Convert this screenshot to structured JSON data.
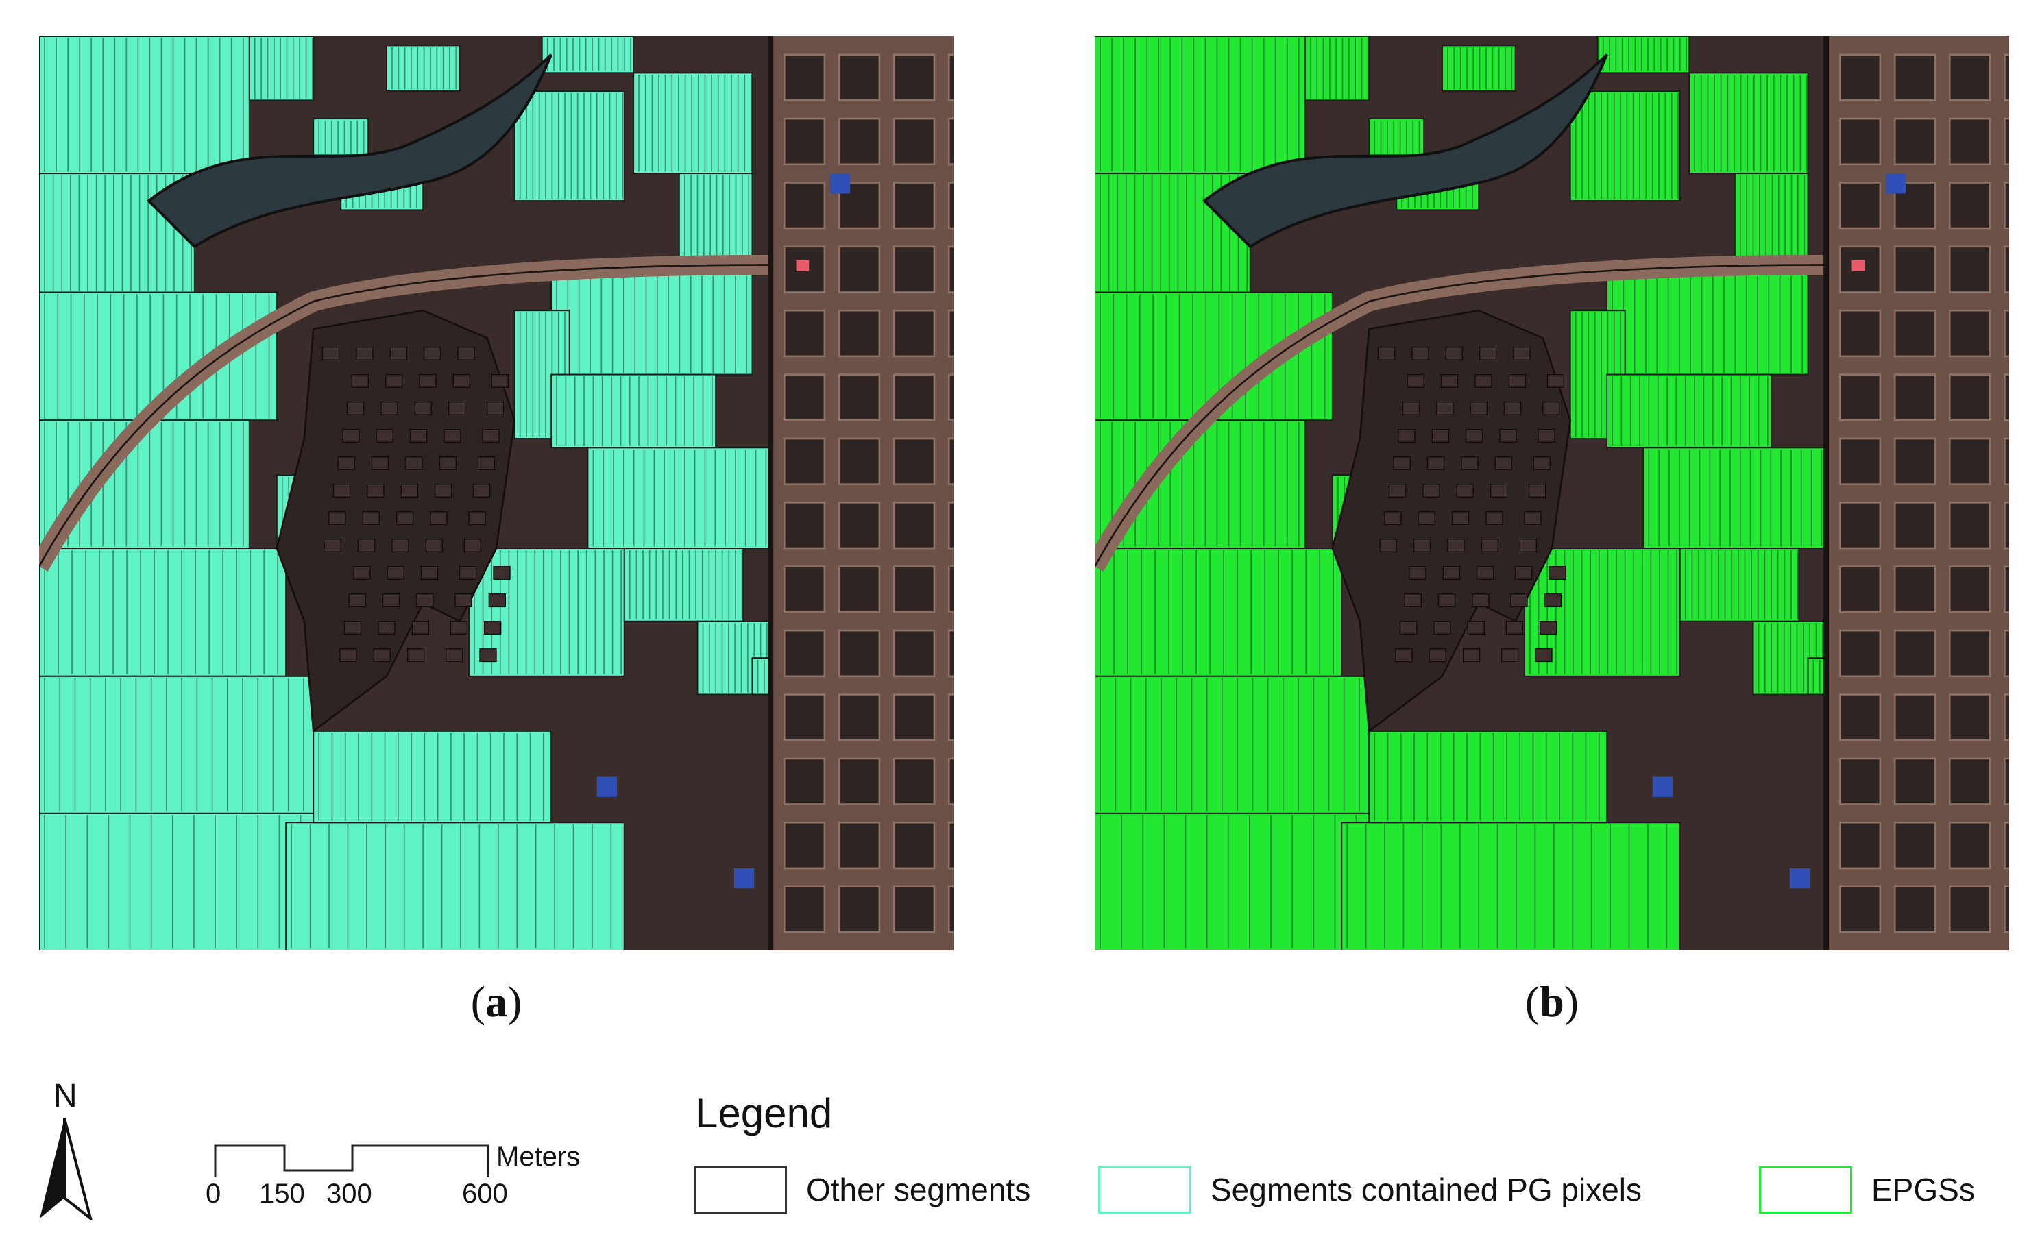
{
  "panels": [
    {
      "caption_open": "(",
      "caption_letter": "a",
      "caption_close": ")",
      "highlight_color": "#5ff2c4",
      "highlight_label": "Segments contained PG pixels"
    },
    {
      "caption_open": "(",
      "caption_letter": "b",
      "caption_close": ")",
      "highlight_color": "#22e832",
      "highlight_label": "EPGSs"
    }
  ],
  "north_arrow": {
    "label": "N"
  },
  "scale_bar": {
    "ticks": [
      "0",
      "150",
      "300",
      "600"
    ],
    "unit": "Meters"
  },
  "legend": {
    "title": "Legend",
    "items": [
      {
        "label": "Other segments",
        "color": "#333333"
      },
      {
        "label": "Segments contained PG pixels",
        "color": "#5ff2c4"
      },
      {
        "label": "EPGSs",
        "color": "#22e832"
      }
    ]
  },
  "colors": {
    "background_dark": "#3a2c2a",
    "village": "#2f2424",
    "river": "#2c3a40",
    "road": "#8a6a5c",
    "urban": "#6b5148"
  }
}
